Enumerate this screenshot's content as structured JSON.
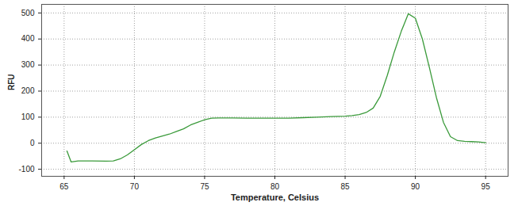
{
  "chart_data": {
    "type": "line",
    "x_label": "Temperature, Celsius",
    "y_label": "RFU",
    "x": [
      65.2,
      65.5,
      66,
      67,
      68,
      68.5,
      69,
      69.5,
      70,
      70.5,
      71,
      71.5,
      72,
      72.5,
      73,
      73.5,
      74,
      74.5,
      75,
      75.5,
      76,
      77,
      78,
      79,
      80,
      81,
      82,
      83,
      84,
      85,
      85.5,
      86,
      86.5,
      87,
      87.5,
      88,
      88.5,
      89,
      89.5,
      90,
      90.5,
      91,
      91.5,
      92,
      92.5,
      93,
      93.5,
      94,
      94.5,
      95
    ],
    "values": [
      -30,
      -72,
      -68,
      -68,
      -69,
      -68,
      -60,
      -45,
      -25,
      -5,
      10,
      20,
      28,
      35,
      45,
      55,
      70,
      80,
      90,
      96,
      97,
      97,
      96,
      96,
      96,
      96,
      98,
      100,
      102,
      104,
      106,
      110,
      118,
      135,
      180,
      260,
      350,
      430,
      497,
      480,
      400,
      290,
      175,
      80,
      25,
      10,
      7,
      6,
      5,
      2
    ],
    "color": "#3a9a3a",
    "xlim": [
      63.4,
      96.6
    ],
    "ylim": [
      -127,
      533
    ],
    "xticks": [
      65,
      70,
      75,
      80,
      85,
      90,
      95
    ],
    "yticks": [
      -100,
      0,
      100,
      200,
      300,
      400,
      500
    ],
    "grid": true
  }
}
